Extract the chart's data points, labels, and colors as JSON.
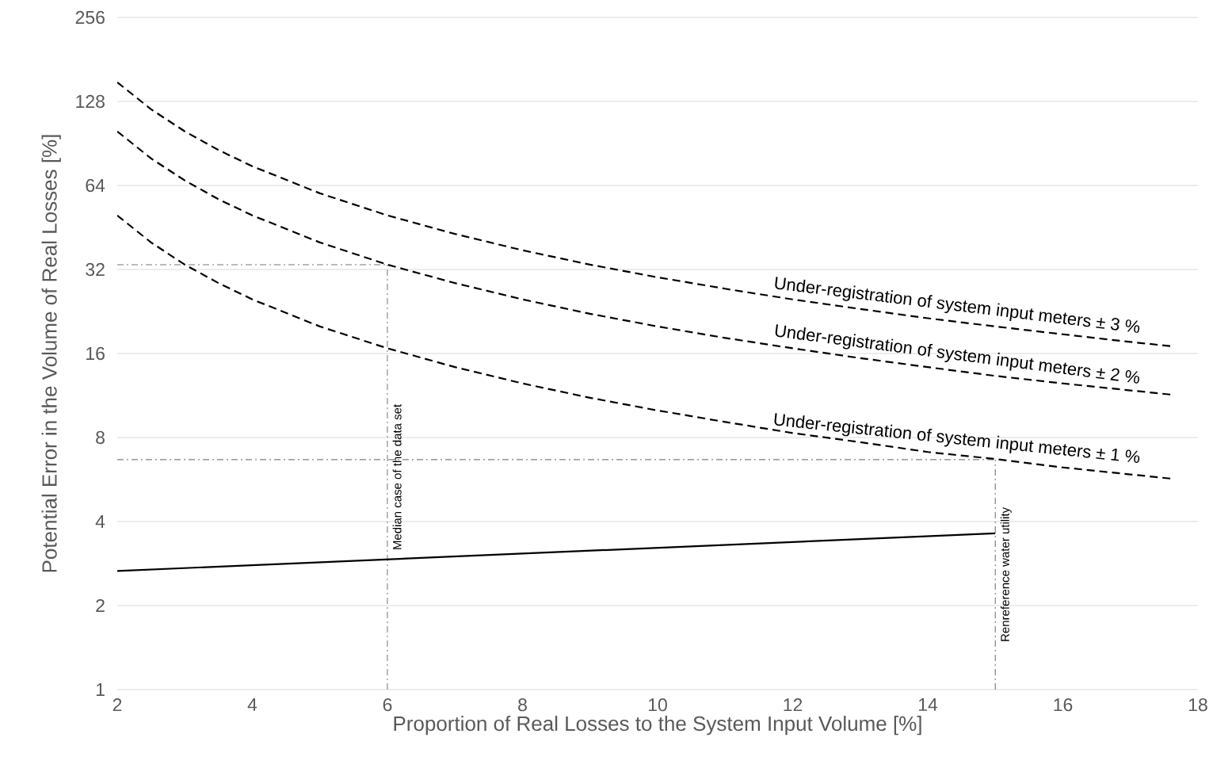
{
  "chart_data": {
    "type": "line",
    "xlabel": "Proportion of Real Losses to the System Input Volume [%]",
    "ylabel": "Potential Error in the Volume of Real Losses [%]",
    "xlim": [
      2,
      18
    ],
    "xticks": [
      2,
      4,
      6,
      8,
      10,
      12,
      14,
      16,
      18
    ],
    "ylim": [
      1,
      256
    ],
    "yticks": [
      1,
      2,
      4,
      8,
      16,
      32,
      64,
      128,
      256
    ],
    "log": "y",
    "grid": "y",
    "series": [
      {
        "name": "Under-registration of system input meters ± 3 %",
        "color": "#000000",
        "line_style": "dashed",
        "x": [
          2,
          2.5,
          3,
          3.5,
          4,
          5,
          6,
          7,
          8,
          9,
          10,
          11,
          12,
          13,
          14,
          15,
          16,
          17,
          17.6
        ],
        "values": [
          150,
          120,
          100,
          85.7,
          75,
          60,
          50,
          42.9,
          37.5,
          33.3,
          30,
          27.3,
          25,
          23.1,
          21.4,
          20,
          18.75,
          17.6,
          17.0
        ]
      },
      {
        "name": "Under-registration of system input meters ± 2 %",
        "color": "#000000",
        "line_style": "dashed",
        "x": [
          2,
          2.5,
          3,
          3.5,
          4,
          5,
          6,
          7,
          8,
          9,
          10,
          11,
          12,
          13,
          14,
          15,
          16,
          17,
          17.6
        ],
        "values": [
          100,
          80,
          66.7,
          57.1,
          50,
          40,
          33.3,
          28.6,
          25,
          22.2,
          20,
          18.2,
          16.7,
          15.4,
          14.3,
          13.3,
          12.5,
          11.8,
          11.4
        ]
      },
      {
        "name": "Under-registration of system input meters ± 1 %",
        "color": "#000000",
        "line_style": "dashed",
        "x": [
          2,
          2.5,
          3,
          3.5,
          4,
          5,
          6,
          7,
          8,
          9,
          10,
          11,
          12,
          13,
          14,
          15,
          16,
          17,
          17.6
        ],
        "values": [
          50,
          40,
          33.3,
          28.6,
          25,
          20,
          16.7,
          14.3,
          12.5,
          11.1,
          10,
          9.1,
          8.3,
          7.7,
          7.1,
          6.7,
          6.25,
          5.9,
          5.7
        ]
      },
      {
        "color": "#000000",
        "line_style": "solid",
        "x": [
          2,
          15
        ],
        "values": [
          2.66,
          3.63
        ]
      }
    ],
    "ref_lines": [
      {
        "axis": "x",
        "value": 6,
        "label": "Median case of the data set",
        "color": "#808080"
      },
      {
        "axis": "y",
        "value": 33.3,
        "color": "#808080"
      },
      {
        "axis": "x",
        "value": 15,
        "label": "Renreference water utility",
        "color": "#808080"
      },
      {
        "axis": "y",
        "value": 6.67,
        "color": "#808080"
      }
    ]
  }
}
